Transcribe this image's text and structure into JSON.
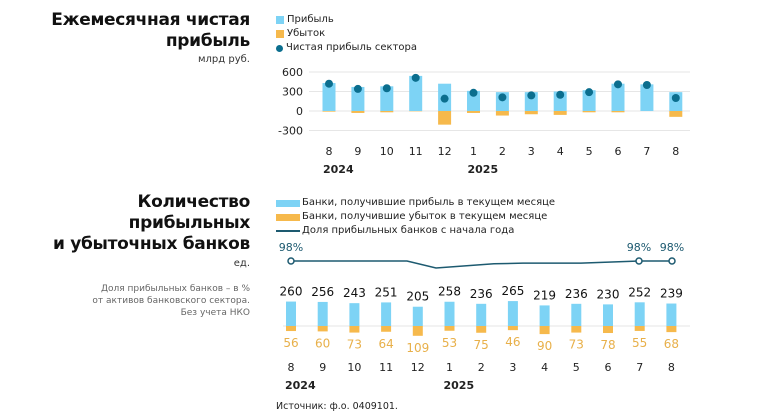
{
  "colors": {
    "profit": "#7dd3f5",
    "loss": "#f6b94c",
    "net_dot": "#0b6e8e",
    "share_line": "#1d5a70",
    "grid": "#e6e6e6",
    "loss_label": "#e8b04a"
  },
  "top": {
    "title_line1": "Ежемесячная чистая",
    "title_line2": "прибыль",
    "unit": "млрд руб.",
    "legend": {
      "profit": "Прибыль",
      "loss": "Убыток",
      "net": "Чистая прибыль сектора"
    }
  },
  "bottom": {
    "title_line1": "Количество",
    "title_line2": "прибыльных",
    "title_line3": "и убыточных банков",
    "unit": "ед.",
    "note_line1": "Доля прибыльных банков – в %",
    "note_line2": "от активов банковского сектора.",
    "note_line3": "Без учета НКО",
    "legend": {
      "profit": "Банки, получившие прибыль в текущем месяце",
      "loss": "Банки, получившие убыток в текущем месяце",
      "share": "Доля прибыльных банков с начала года"
    }
  },
  "source": "Источник: ф.о. 0409101.",
  "chart_data": [
    {
      "type": "bar",
      "title": "Ежемесячная чистая прибыль",
      "ylabel": "млрд руб.",
      "categories": [
        "8",
        "9",
        "10",
        "11",
        "12",
        "1",
        "2",
        "3",
        "4",
        "5",
        "6",
        "7",
        "8"
      ],
      "year_labels": [
        {
          "index": 0,
          "label": "2024"
        },
        {
          "index": 5,
          "label": "2025"
        }
      ],
      "yticks": [
        600,
        300,
        0,
        -300
      ],
      "ylim": [
        -300,
        600
      ],
      "grid": true,
      "legend_position": "top",
      "series": [
        {
          "name": "Прибыль",
          "kind": "bar",
          "values": [
            430,
            370,
            380,
            540,
            420,
            310,
            290,
            290,
            300,
            320,
            420,
            410,
            290
          ]
        },
        {
          "name": "Убыток",
          "kind": "bar",
          "values": [
            -10,
            -30,
            -20,
            -5,
            -210,
            -30,
            -70,
            -50,
            -60,
            -20,
            -20,
            0,
            -90
          ]
        },
        {
          "name": "Чистая прибыль сектора",
          "kind": "dot",
          "values": [
            420,
            340,
            350,
            510,
            190,
            280,
            210,
            240,
            250,
            290,
            410,
            400,
            200
          ]
        }
      ]
    },
    {
      "type": "bar",
      "title": "Количество прибыльных и убыточных банков",
      "ylabel": "ед.",
      "categories": [
        "8",
        "9",
        "10",
        "11",
        "12",
        "1",
        "2",
        "3",
        "4",
        "5",
        "6",
        "7",
        "8"
      ],
      "year_labels": [
        {
          "index": 0,
          "label": "2024"
        },
        {
          "index": 5,
          "label": "2025"
        }
      ],
      "legend_position": "top",
      "series": [
        {
          "name": "Банки, получившие прибыль в текущем месяце",
          "kind": "bar",
          "values": [
            260,
            256,
            243,
            251,
            205,
            258,
            236,
            265,
            219,
            236,
            230,
            252,
            239
          ]
        },
        {
          "name": "Банки, получившие убыток в текущем месяце",
          "kind": "bar",
          "values": [
            56,
            60,
            73,
            64,
            109,
            53,
            75,
            46,
            90,
            73,
            78,
            55,
            68
          ]
        },
        {
          "name": "Доля прибыльных банков с начала года",
          "kind": "line",
          "unit": "%",
          "values": [
            98,
            98,
            98,
            98,
            98,
            97,
            97.3,
            97.6,
            97.7,
            97.7,
            97.7,
            98,
            98
          ],
          "labeled_points": [
            {
              "index": 0,
              "label": "98%"
            },
            {
              "index": 11,
              "label": "98%"
            },
            {
              "index": 12,
              "label": "98%"
            }
          ]
        }
      ]
    }
  ]
}
